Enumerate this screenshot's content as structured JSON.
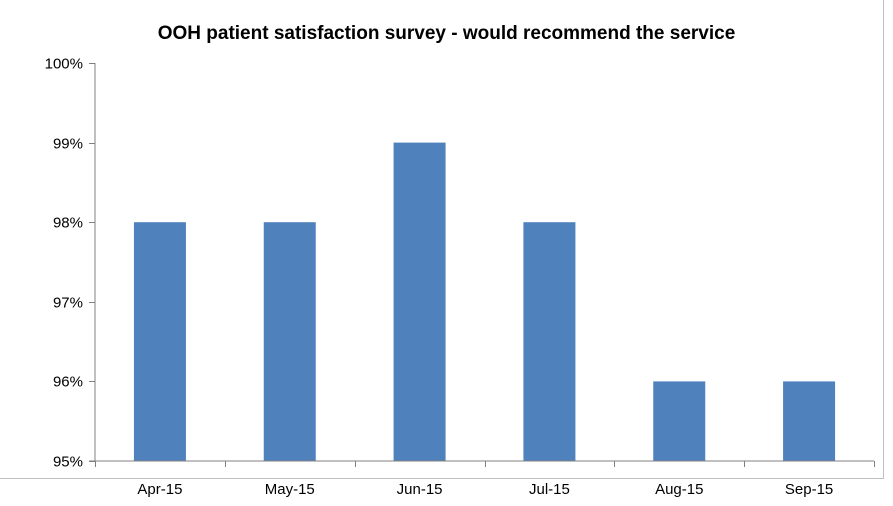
{
  "chart_data": {
    "type": "bar",
    "title": "OOH patient satisfaction survey - would recommend the service",
    "xlabel": "",
    "ylabel": "",
    "categories": [
      "Apr-15",
      "May-15",
      "Jun-15",
      "Jul-15",
      "Aug-15",
      "Sep-15"
    ],
    "series": [
      {
        "values": [
          98,
          98,
          99,
          98,
          96,
          96
        ]
      }
    ],
    "ylim": [
      95,
      100
    ],
    "yticks": [
      95,
      96,
      97,
      98,
      99,
      100
    ],
    "ytick_labels": [
      "95%",
      "96%",
      "97%",
      "98%",
      "99%",
      "100%"
    ],
    "grid": false,
    "legend": "none",
    "bar_color": "#4f81bd",
    "axis_color": "#808080"
  }
}
